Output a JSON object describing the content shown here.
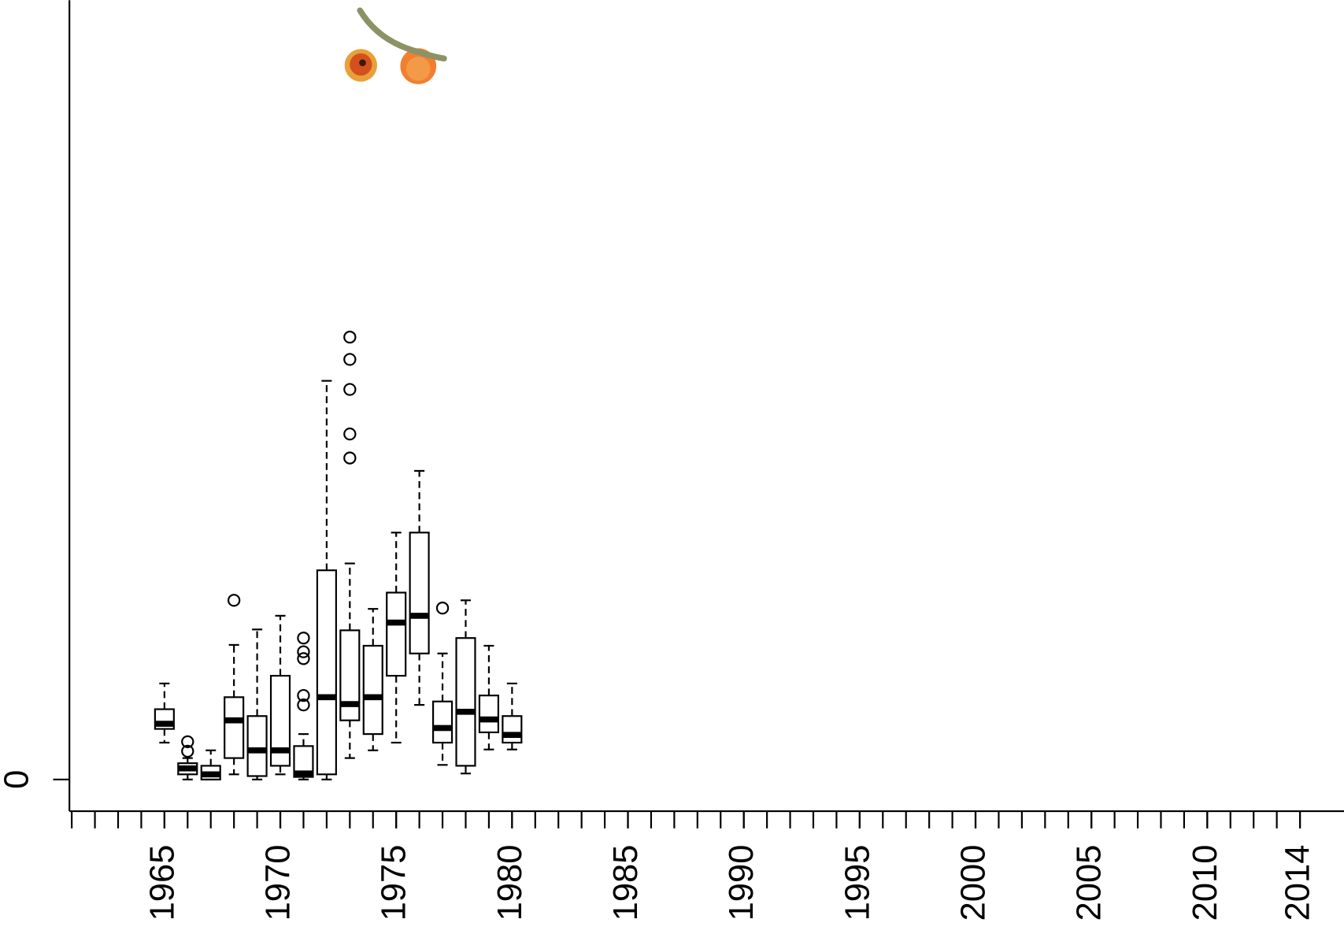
{
  "chart_data": {
    "type": "box",
    "x": [
      1965,
      1966,
      1967,
      1968,
      1969,
      1970,
      1971,
      1972,
      1973,
      1974,
      1975,
      1976,
      1977,
      1978,
      1979,
      1980
    ],
    "boxes": [
      {
        "min": 4.3,
        "q1": 5.9,
        "median": 6.5,
        "q3": 8.2,
        "max": 11.2,
        "outliers": []
      },
      {
        "min": 0,
        "q1": 0.6,
        "median": 1.3,
        "q3": 1.9,
        "max": 2.5,
        "outliers": [
          3.3,
          4.4
        ]
      },
      {
        "min": 0,
        "q1": 0,
        "median": 0.6,
        "q3": 1.6,
        "max": 3.4,
        "outliers": []
      },
      {
        "min": 0.6,
        "q1": 2.5,
        "median": 6.9,
        "q3": 9.6,
        "max": 15.7,
        "outliers": [
          20.9
        ]
      },
      {
        "min": 0,
        "q1": 0.4,
        "median": 3.4,
        "q3": 7.4,
        "max": 17.5,
        "outliers": []
      },
      {
        "min": 0.6,
        "q1": 1.6,
        "median": 3.4,
        "q3": 12.1,
        "max": 19.1,
        "outliers": []
      },
      {
        "min": 0,
        "q1": 0.3,
        "median": 0.7,
        "q3": 3.9,
        "max": 5.3,
        "outliers": [
          8.7,
          9.8,
          14.1,
          14.9,
          16.5
        ]
      },
      {
        "min": 0,
        "q1": 0.6,
        "median": 9.6,
        "q3": 24.4,
        "max": 46.5,
        "outliers": []
      },
      {
        "min": 2.5,
        "q1": 6.9,
        "median": 8.8,
        "q3": 17.4,
        "max": 25.2,
        "outliers": [
          37.5,
          40.3,
          45.5,
          49.0,
          51.6
        ]
      },
      {
        "min": 3.4,
        "q1": 5.3,
        "median": 9.6,
        "q3": 15.6,
        "max": 19.9,
        "outliers": []
      },
      {
        "min": 4.3,
        "q1": 12.1,
        "median": 18.3,
        "q3": 21.8,
        "max": 28.8,
        "outliers": []
      },
      {
        "min": 8.7,
        "q1": 14.7,
        "median": 19.1,
        "q3": 28.8,
        "max": 36.0,
        "outliers": []
      },
      {
        "min": 1.7,
        "q1": 4.3,
        "median": 6.0,
        "q3": 9.1,
        "max": 14.7,
        "outliers": [
          20.0
        ]
      },
      {
        "min": 0.7,
        "q1": 1.6,
        "median": 7.9,
        "q3": 16.5,
        "max": 20.9,
        "outliers": []
      },
      {
        "min": 3.5,
        "q1": 5.5,
        "median": 7.0,
        "q3": 9.8,
        "max": 15.6,
        "outliers": []
      },
      {
        "min": 3.5,
        "q1": 4.3,
        "median": 5.2,
        "q3": 7.4,
        "max": 11.2,
        "outliers": []
      }
    ],
    "xlim": [
      1960.9,
      2015.9
    ],
    "xticks": [
      1965,
      1970,
      1975,
      1980,
      1985,
      1990,
      1995,
      2000,
      2005,
      2010,
      2014
    ],
    "xminorticks": [
      1961,
      1962,
      1963,
      1964,
      1965,
      1966,
      1967,
      1968,
      1969,
      1970,
      1971,
      1972,
      1973,
      1974,
      1975,
      1976,
      1977,
      1978,
      1979,
      1980,
      1981,
      1982,
      1983,
      1984,
      1985,
      1986,
      1987,
      1988,
      1989,
      1990,
      1991,
      1992,
      1993,
      1994,
      1995,
      1996,
      1997,
      1998,
      1999,
      2000,
      2001,
      2002,
      2003,
      2004,
      2005,
      2006,
      2007,
      2008,
      2009,
      2010,
      2011,
      2012,
      2013,
      2014
    ],
    "ylim": [
      -3.7,
      90.9
    ],
    "yticks": [
      0
    ]
  }
}
